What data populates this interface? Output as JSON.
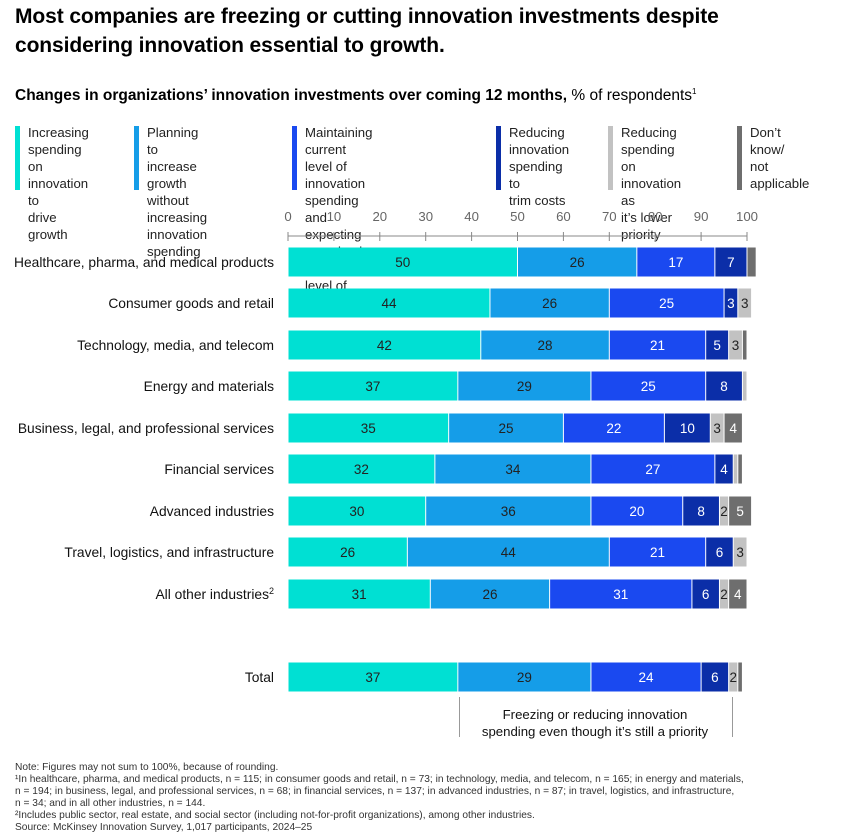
{
  "title": "Most companies are freezing or cutting innovation investments despite considering innovation essential to growth.",
  "subtitle_bold": "Changes in organizations’ innovation investments over coming 12 months,",
  "subtitle_rest": " % of respondents",
  "subtitle_sup": "1",
  "legend": [
    {
      "label": "Increasing\nspending on\ninnovation to\ndrive growth",
      "color": "#00E0D3"
    },
    {
      "label": "Planning to increase\ngrowth without\nincreasing\ninnovation spending",
      "color": "#159DE8"
    },
    {
      "label": "Maintaining current level of\ninnovation spending and\nexpecting to maintain\ncurrent level of growth",
      "color": "#1A49F0"
    },
    {
      "label": "Reducing\ninnovation\nspending to\ntrim costs",
      "color": "#0B2EA8"
    },
    {
      "label": "Reducing\nspending on\ninnovation as\nit’s lower priority",
      "color": "#C2C2C2"
    },
    {
      "label": "Don’t\nknow/\nnot\napplicable",
      "color": "#6E6E6E"
    }
  ],
  "chart_data": {
    "type": "bar",
    "orientation": "horizontal",
    "stacked": true,
    "x_ticks": [
      "0",
      "10",
      "20",
      "30",
      "40",
      "50",
      "60",
      "70",
      "80",
      "90",
      "100"
    ],
    "xlim": [
      0,
      100
    ],
    "categories": [
      {
        "label": "Healthcare, pharma, and medical products",
        "sup": ""
      },
      {
        "label": "Consumer goods and retail",
        "sup": ""
      },
      {
        "label": "Technology, media, and telecom",
        "sup": ""
      },
      {
        "label": "Energy and materials",
        "sup": ""
      },
      {
        "label": "Business, legal, and professional services",
        "sup": ""
      },
      {
        "label": "Financial services",
        "sup": ""
      },
      {
        "label": "Advanced industries",
        "sup": ""
      },
      {
        "label": "Travel, logistics, and infrastructure",
        "sup": ""
      },
      {
        "label": "All other industries",
        "sup": "2"
      },
      {
        "label": "Total",
        "sup": ""
      }
    ],
    "rows": [
      {
        "values": [
          50,
          26,
          17,
          7,
          0,
          2
        ],
        "labels": [
          "50",
          "26",
          "17",
          "7",
          "",
          ""
        ]
      },
      {
        "values": [
          44,
          26,
          25,
          3,
          3,
          0
        ],
        "labels": [
          "44",
          "26",
          "25",
          "3",
          "3",
          ""
        ]
      },
      {
        "values": [
          42,
          28,
          21,
          5,
          3,
          1
        ],
        "labels": [
          "42",
          "28",
          "21",
          "5",
          "3",
          ""
        ]
      },
      {
        "values": [
          37,
          29,
          25,
          8,
          1,
          0
        ],
        "labels": [
          "37",
          "29",
          "25",
          "8",
          "",
          ""
        ]
      },
      {
        "values": [
          35,
          25,
          22,
          10,
          3,
          4
        ],
        "labels": [
          "35",
          "25",
          "22",
          "10",
          "3",
          "4"
        ]
      },
      {
        "values": [
          32,
          34,
          27,
          4,
          1,
          1
        ],
        "labels": [
          "32",
          "34",
          "27",
          "4",
          "",
          ""
        ]
      },
      {
        "values": [
          30,
          36,
          20,
          8,
          2,
          5
        ],
        "labels": [
          "30",
          "36",
          "20",
          "8",
          "2",
          "5"
        ]
      },
      {
        "values": [
          26,
          44,
          21,
          6,
          3,
          0
        ],
        "labels": [
          "26",
          "44",
          "21",
          "6",
          "3",
          ""
        ]
      },
      {
        "values": [
          31,
          26,
          31,
          6,
          2,
          4
        ],
        "labels": [
          "31",
          "26",
          "31",
          "6",
          "2",
          "4"
        ]
      },
      {
        "values": [
          37,
          29,
          24,
          6,
          2,
          1
        ],
        "labels": [
          "37",
          "29",
          "24",
          "6",
          "2",
          ""
        ]
      }
    ],
    "label_text_colors": [
      "#222222",
      "#222222",
      "#ffffff",
      "#ffffff",
      "#222222",
      "#ffffff"
    ]
  },
  "bracket_label": "Freezing or reducing innovation\nspending even though it’s still a priority",
  "notes": [
    "Note: Figures may not sum to 100%, because of rounding.",
    "¹In healthcare, pharma, and medical products, n = 115; in consumer goods and retail, n = 73; in technology, media, and telecom, n = 165; in energy and materials,\n n = 194; in business, legal, and professional services, n = 68; in financial services, n = 137; in advanced industries, n = 87; in travel, logistics, and infrastructure,\n n = 34; and in all other industries, n = 144.",
    "²Includes public sector, real estate, and social sector (including not-for-profit organizations), among other industries.",
    " Source: McKinsey Innovation Survey, 1,017 participants, 2024–25"
  ]
}
